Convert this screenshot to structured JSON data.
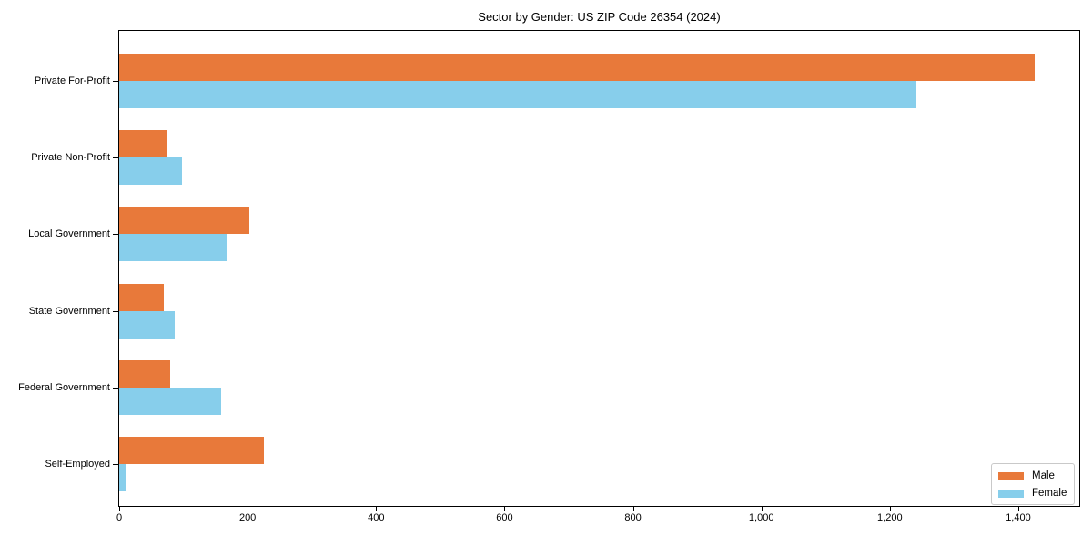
{
  "chart_data": {
    "type": "bar",
    "orientation": "horizontal",
    "title": "Sector by Gender: US ZIP Code 26354 (2024)",
    "categories": [
      "Private For-Profit",
      "Private Non-Profit",
      "Local Government",
      "State Government",
      "Federal Government",
      "Self-Employed"
    ],
    "series": [
      {
        "name": "Male",
        "color": "#E8793A",
        "values": [
          1425,
          74,
          203,
          69,
          80,
          225
        ]
      },
      {
        "name": "Female",
        "color": "#87CEEB",
        "values": [
          1242,
          98,
          168,
          86,
          159,
          10
        ]
      }
    ],
    "xlabel": "",
    "ylabel": "",
    "xlim": [
      0,
      1495
    ],
    "xticks": [
      {
        "value": 0,
        "label": "0"
      },
      {
        "value": 200,
        "label": "200"
      },
      {
        "value": 400,
        "label": "400"
      },
      {
        "value": 600,
        "label": "600"
      },
      {
        "value": 800,
        "label": "800"
      },
      {
        "value": 1000,
        "label": "1,000"
      },
      {
        "value": 1200,
        "label": "1,200"
      },
      {
        "value": 1400,
        "label": "1,400"
      }
    ],
    "grid": false,
    "legend_position": "lower right",
    "colors": {
      "male": "#E8793A",
      "female": "#87CEEB",
      "axis": "#000000",
      "background": "#ffffff",
      "legend_border": "#c9c9c9"
    }
  }
}
